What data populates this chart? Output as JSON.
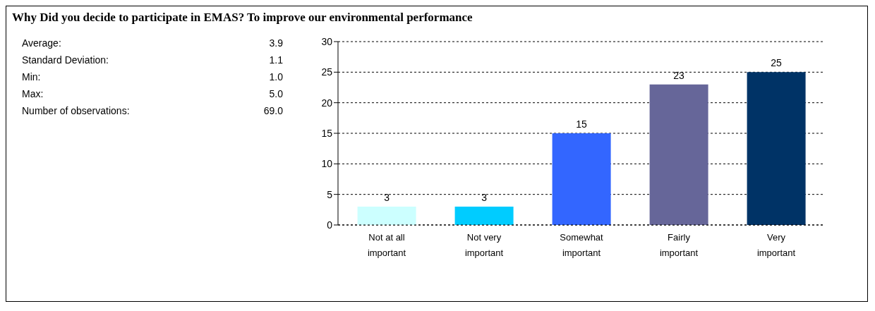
{
  "chart_data": {
    "type": "bar",
    "title": "Why Did you decide to participate in EMAS?  To improve our environmental performance",
    "categories": [
      "Not at all important",
      "Not very important",
      "Somewhat important",
      "Fairly important",
      "Very important"
    ],
    "values": [
      3,
      3,
      15,
      23,
      25
    ],
    "colors": [
      "#ccffff",
      "#00ccff",
      "#3366ff",
      "#666699",
      "#003366"
    ],
    "ylim": [
      0,
      30
    ],
    "yticks": [
      0,
      5,
      10,
      15,
      20,
      25,
      30
    ],
    "grid": "y",
    "data_labels": true,
    "annotations": [
      "Average: 3.9",
      "Standard Deviation: 1.1",
      "Min: 1.0",
      "Max: 5.0",
      "Number of observations: 69.0"
    ]
  }
}
